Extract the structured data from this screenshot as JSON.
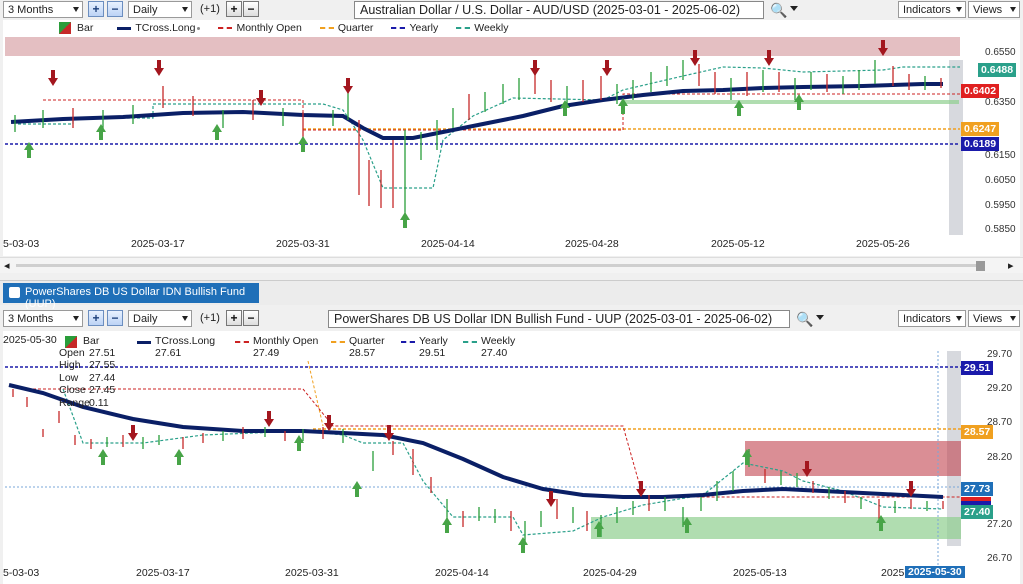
{
  "top": {
    "range": "3 Months",
    "interval": "Daily",
    "offset": "(+1)",
    "title": "Australian Dollar / U.S. Dollar - AUD/USD (2025-03-01 - 2025-06-02)",
    "indicators_label": "Indicators",
    "views_label": "Views",
    "legend": {
      "bar": "Bar",
      "tcross": "TCross.Long",
      "monthly": "Monthly Open",
      "quarter": "Quarter",
      "yearly": "Yearly",
      "weekly": "Weekly"
    },
    "price_labels": [
      "0.6550",
      "0.6350",
      "0.6150",
      "0.6050",
      "0.5950",
      "0.5850"
    ],
    "badges": {
      "weekly": "0.6488",
      "monthly": "0.6402",
      "quarter": "0.6247",
      "yearly": "0.6189"
    },
    "dates": [
      "5-03-03",
      "2025-03-17",
      "2025-03-31",
      "2025-04-14",
      "2025-04-28",
      "2025-05-12",
      "2025-05-26"
    ]
  },
  "bottom": {
    "tab_label": "PowerShares DB US Dollar IDN Bullish Fund (UUP)",
    "range": "3 Months",
    "interval": "Daily",
    "offset": "(+1)",
    "title": "PowerShares DB US Dollar IDN Bullish Fund - UUP (2025-03-01 - 2025-06-02)",
    "indicators_label": "Indicators",
    "views_label": "Views",
    "legend": {
      "bar": "Bar",
      "tcross": "TCross.Long",
      "tcross_val": "27.61",
      "monthly": "Monthly Open",
      "monthly_val": "27.49",
      "quarter": "Quarter",
      "quarter_val": "28.57",
      "yearly": "Yearly",
      "yearly_val": "29.51",
      "weekly": "Weekly",
      "weekly_val": "27.40"
    },
    "ohlc": {
      "date": "2025-05-30",
      "open_k": "Open",
      "open": "27.51",
      "high_k": "High",
      "high": "27.55",
      "low_k": "Low",
      "low": "27.44",
      "close_k": "Close",
      "close": "27.45",
      "range_k": "Range",
      "range": "0.11"
    },
    "price_labels": [
      "29.70",
      "29.20",
      "28.70",
      "28.20",
      "27.20",
      "26.70"
    ],
    "badges": {
      "yearly": "29.51",
      "quarter": "28.57",
      "tcross": "27.73",
      "weekly": "27.40"
    },
    "dates": [
      "5-03-03",
      "2025-03-17",
      "2025-03-31",
      "2025-04-14",
      "2025-04-29",
      "2025-05-13",
      "2025"
    ],
    "cursor_date": "2025-05-30"
  },
  "colors": {
    "accent": "#1f6fb8",
    "tcross": "#0a1f66",
    "monthly": "#cc2222",
    "quarter": "#f0a020",
    "yearly": "#1a1aaa",
    "weekly": "#2aa08a"
  }
}
